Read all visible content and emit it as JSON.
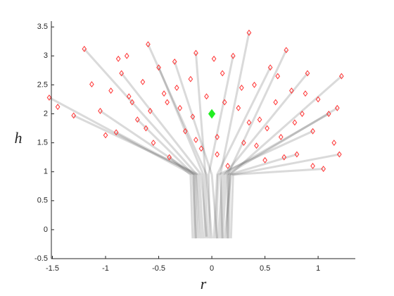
{
  "chart_data": {
    "type": "scatter",
    "xlabel": "r",
    "ylabel": "h",
    "xlim": [
      -1.51,
      1.35
    ],
    "ylim": [
      -0.5,
      3.6
    ],
    "xticks": [
      -1.5,
      -1,
      -0.5,
      0,
      0.5,
      1
    ],
    "yticks": [
      -0.5,
      0,
      0.5,
      1,
      1.5,
      2,
      2.5,
      3,
      3.5
    ],
    "lines": {
      "color": "#333333",
      "paths": [
        {
          "x": [
            -0.15,
            -0.18,
            -1.53
          ],
          "y": [
            -0.15,
            0.95,
            2.28
          ]
        },
        {
          "x": [
            -0.1,
            -0.14,
            -1.2
          ],
          "y": [
            -0.15,
            0.95,
            3.12
          ]
        },
        {
          "x": [
            -0.05,
            -0.1,
            -0.85
          ],
          "y": [
            -0.12,
            0.95,
            2.7
          ]
        },
        {
          "x": [
            0.0,
            -0.05,
            -0.6
          ],
          "y": [
            -0.15,
            0.95,
            3.2
          ]
        },
        {
          "x": [
            0.05,
            0.0,
            -0.35
          ],
          "y": [
            -0.15,
            0.95,
            2.9
          ]
        },
        {
          "x": [
            0.1,
            0.08,
            0.35
          ],
          "y": [
            -0.15,
            0.95,
            3.4
          ]
        },
        {
          "x": [
            0.15,
            0.15,
            0.7
          ],
          "y": [
            -0.15,
            0.95,
            3.1
          ]
        },
        {
          "x": [
            0.18,
            0.2,
            1.2
          ],
          "y": [
            -0.15,
            0.95,
            1.3
          ]
        },
        {
          "x": [
            -0.12,
            -0.15,
            -0.9
          ],
          "y": [
            -0.15,
            0.95,
            1.68
          ]
        },
        {
          "x": [
            0.12,
            0.18,
            1.05
          ],
          "y": [
            -0.15,
            0.95,
            1.05
          ]
        },
        {
          "x": [
            -0.08,
            -0.12,
            -1.3
          ],
          "y": [
            -0.15,
            0.95,
            1.97
          ]
        },
        {
          "x": [
            0.08,
            0.12,
            0.9
          ],
          "y": [
            -0.15,
            0.95,
            2.7
          ]
        },
        {
          "x": [
            -0.18,
            -0.2,
            -0.4
          ],
          "y": [
            -0.15,
            0.95,
            1.25
          ]
        },
        {
          "x": [
            0.02,
            0.05,
            0.55
          ],
          "y": [
            -0.15,
            0.95,
            2.8
          ]
        },
        {
          "x": [
            0.16,
            0.17,
            1.22
          ],
          "y": [
            -0.15,
            0.95,
            2.65
          ]
        },
        {
          "x": [
            -0.02,
            -0.03,
            0.2
          ],
          "y": [
            -0.15,
            0.95,
            3.0
          ]
        },
        {
          "x": [
            0.06,
            0.1,
            1.1
          ],
          "y": [
            -0.15,
            0.95,
            2.0
          ]
        },
        {
          "x": [
            -0.14,
            -0.16,
            -1.05
          ],
          "y": [
            -0.15,
            0.95,
            2.05
          ]
        },
        {
          "x": [
            0.14,
            0.16,
            0.8
          ],
          "y": [
            -0.15,
            0.95,
            1.3
          ]
        },
        {
          "x": [
            -0.06,
            -0.08,
            -0.5
          ],
          "y": [
            -0.15,
            0.95,
            2.8
          ]
        },
        {
          "x": [
            0.04,
            0.06,
            0.95
          ],
          "y": [
            -0.15,
            0.95,
            1.7
          ]
        },
        {
          "x": [
            -0.16,
            -0.17,
            -0.7
          ],
          "y": [
            -0.15,
            0.95,
            1.9
          ]
        },
        {
          "x": [
            0.1,
            0.14,
            1.18
          ],
          "y": [
            -0.15,
            0.95,
            2.1
          ]
        },
        {
          "x": [
            -0.04,
            -0.06,
            -0.15
          ],
          "y": [
            -0.15,
            0.95,
            3.05
          ]
        }
      ]
    },
    "series": [
      {
        "color": "#ff3333",
        "marker": "diamond-open",
        "x": [
          -1.53,
          -1.45,
          -1.3,
          -1.2,
          -1.13,
          -1.05,
          -0.95,
          -0.9,
          -0.85,
          -0.8,
          -0.75,
          -0.7,
          -0.65,
          -0.6,
          -0.55,
          -0.5,
          -0.45,
          -0.4,
          -0.35,
          -0.3,
          -0.25,
          -0.2,
          -0.15,
          -0.1,
          -0.05,
          0.05,
          0.1,
          0.15,
          0.2,
          0.25,
          0.3,
          0.35,
          0.4,
          0.45,
          0.5,
          0.55,
          0.6,
          0.65,
          0.7,
          0.75,
          0.8,
          0.85,
          0.9,
          0.95,
          1.0,
          1.05,
          1.1,
          1.15,
          1.2,
          1.22,
          -1.0,
          -0.88,
          -0.58,
          -0.33,
          0.02,
          0.12,
          0.42,
          0.62,
          0.78,
          0.88,
          -0.78,
          -0.18,
          0.28,
          0.52,
          0.68,
          -0.42,
          0.05,
          0.35,
          -0.62,
          0.95,
          1.18,
          -0.15
        ],
        "y": [
          2.28,
          2.12,
          1.97,
          3.12,
          2.51,
          2.05,
          2.4,
          1.68,
          2.7,
          3.0,
          2.2,
          1.9,
          2.55,
          3.2,
          1.5,
          2.8,
          2.35,
          1.25,
          2.9,
          2.1,
          1.7,
          2.6,
          3.05,
          1.4,
          2.3,
          1.6,
          2.7,
          1.1,
          3.0,
          2.1,
          1.5,
          3.4,
          2.5,
          1.9,
          1.2,
          2.8,
          2.2,
          1.6,
          3.1,
          2.4,
          1.3,
          2.0,
          2.7,
          1.7,
          2.25,
          1.05,
          2.0,
          1.5,
          1.3,
          2.65,
          1.63,
          2.95,
          2.05,
          2.45,
          2.95,
          2.2,
          1.45,
          2.65,
          1.85,
          2.35,
          2.3,
          1.95,
          2.45,
          1.75,
          1.25,
          2.2,
          1.3,
          1.85,
          1.75,
          1.1,
          2.1,
          1.55
        ]
      },
      {
        "color": "#22ee22",
        "marker": "diamond-filled",
        "x": [
          0
        ],
        "y": [
          2
        ]
      }
    ]
  }
}
